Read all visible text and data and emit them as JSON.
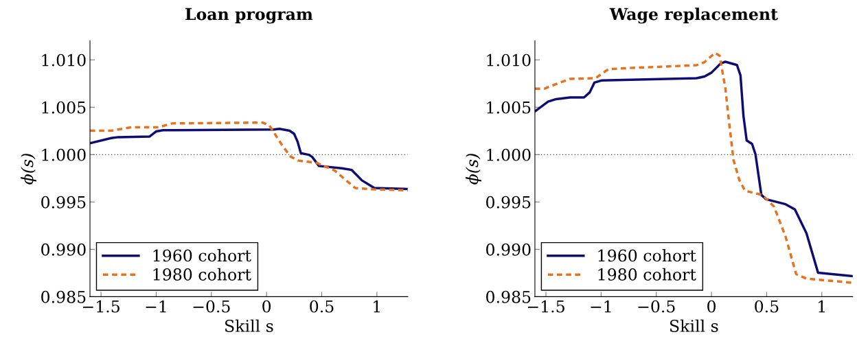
{
  "chart_data": [
    {
      "type": "line",
      "title": "Loan program",
      "xlabel": "Skill s",
      "ylabel": "ϕ(s)",
      "legend": "bottom left",
      "grid": false,
      "xlim": [
        -1.6,
        1.28
      ],
      "xticks": [
        {
          "value": -1.5,
          "label": "−1.5"
        },
        {
          "value": -1,
          "label": "−1"
        },
        {
          "value": -0.5,
          "label": "−0.5"
        },
        0,
        0.5,
        1
      ],
      "ylim": [
        0.985,
        1.012
      ],
      "yticks": [
        {
          "value": 0.985,
          "label": "0.985"
        },
        {
          "value": 0.99,
          "label": "0.990"
        },
        {
          "value": 0.995,
          "label": "0.995"
        },
        {
          "value": 1.0,
          "label": "1.000"
        },
        {
          "value": 1.005,
          "label": "1.005"
        },
        {
          "value": 1.01,
          "label": "1.010"
        }
      ],
      "ref_lines": [
        {
          "axis": "y",
          "value": 1.0,
          "color": "#000000",
          "line_style": "dotted"
        }
      ],
      "series": [
        {
          "name": "1960 cohort",
          "color": "#0d0d73",
          "line_style": "solid",
          "x": [
            -1.6,
            -1.408,
            -1.347,
            -1.061,
            -0.999,
            -0.938,
            0.066,
            0.117,
            0.209,
            0.25,
            0.281,
            0.311,
            0.383,
            0.413,
            0.475,
            0.68,
            0.772,
            0.864,
            0.977,
            1.28
          ],
          "values": [
            1.0012,
            1.00174,
            1.00184,
            1.0019,
            1.00245,
            1.00257,
            1.00265,
            1.00272,
            1.00252,
            1.0022,
            1.00137,
            1.00015,
            0.99998,
            0.99976,
            0.9988,
            0.99855,
            0.99838,
            0.99728,
            0.99647,
            0.99637
          ]
        },
        {
          "name": "1980 cohort",
          "color": "#e8711c",
          "line_style": "dashed",
          "x": [
            -1.6,
            -1.408,
            -1.224,
            -0.979,
            -0.856,
            -0.037,
            0.025,
            0.147,
            0.219,
            0.291,
            0.455,
            0.618,
            0.803,
            0.987,
            1.28
          ],
          "values": [
            1.00252,
            1.00252,
            1.00289,
            1.00289,
            1.00329,
            1.00338,
            1.00309,
            1.00088,
            0.99978,
            0.99936,
            0.99912,
            0.99831,
            0.99647,
            0.99632,
            0.99623
          ]
        }
      ]
    },
    {
      "type": "line",
      "title": "Wage replacement",
      "xlabel": "Skill s",
      "ylabel": "ϕ(s)",
      "legend": "bottom left",
      "grid": false,
      "xlim": [
        -1.6,
        1.28
      ],
      "xticks": [
        {
          "value": -1.5,
          "label": "−1.5"
        },
        {
          "value": -1,
          "label": "−1"
        },
        {
          "value": -0.5,
          "label": "−0.5"
        },
        0,
        0.5,
        1
      ],
      "ylim": [
        0.985,
        1.012
      ],
      "yticks": [
        {
          "value": 0.985,
          "label": "0.985"
        },
        {
          "value": 0.99,
          "label": "0.990"
        },
        {
          "value": 0.995,
          "label": "0.995"
        },
        {
          "value": 1.0,
          "label": "1.000"
        },
        {
          "value": 1.005,
          "label": "1.005"
        },
        {
          "value": 1.01,
          "label": "1.010"
        }
      ],
      "ref_lines": [
        {
          "axis": "y",
          "value": 1.0,
          "color": "#000000",
          "line_style": "dotted"
        }
      ],
      "series": [
        {
          "name": "1960 cohort",
          "color": "#0d0d73",
          "line_style": "solid",
          "x": [
            -1.6,
            -1.481,
            -1.407,
            -1.281,
            -1.155,
            -1.103,
            -1.061,
            -0.998,
            -0.137,
            -0.063,
            0.0,
            0.084,
            0.126,
            0.231,
            0.263,
            0.29,
            0.319,
            0.368,
            0.399,
            0.452,
            0.494,
            0.672,
            0.756,
            0.861,
            0.966,
            1.28
          ],
          "values": [
            1.00456,
            1.00559,
            1.00586,
            1.00603,
            1.00603,
            1.00657,
            1.0076,
            1.00782,
            1.00806,
            1.00824,
            1.00865,
            1.00963,
            1.0098,
            1.00946,
            1.00836,
            1.00407,
            1.00149,
            1.00113,
            1.00002,
            0.99574,
            0.99529,
            0.99476,
            0.99421,
            0.99169,
            0.98752,
            0.98716
          ]
        },
        {
          "name": "1980 cohort",
          "color": "#e8711c",
          "line_style": "dashed",
          "x": [
            -1.6,
            -1.512,
            -1.386,
            -1.281,
            -1.05,
            -0.934,
            -0.693,
            -0.137,
            -0.063,
            0.032,
            0.074,
            0.126,
            0.158,
            0.2,
            0.252,
            0.304,
            0.462,
            0.567,
            0.672,
            0.767,
            0.861,
            1.28
          ],
          "values": [
            1.00696,
            1.00696,
            1.00755,
            1.00799,
            1.00807,
            1.00902,
            1.00917,
            1.00943,
            1.00976,
            1.01074,
            1.01044,
            1.007,
            1.00358,
            0.99941,
            0.99733,
            0.99618,
            0.99574,
            0.99451,
            0.99132,
            0.98739,
            0.9869,
            0.98647
          ]
        }
      ]
    }
  ]
}
